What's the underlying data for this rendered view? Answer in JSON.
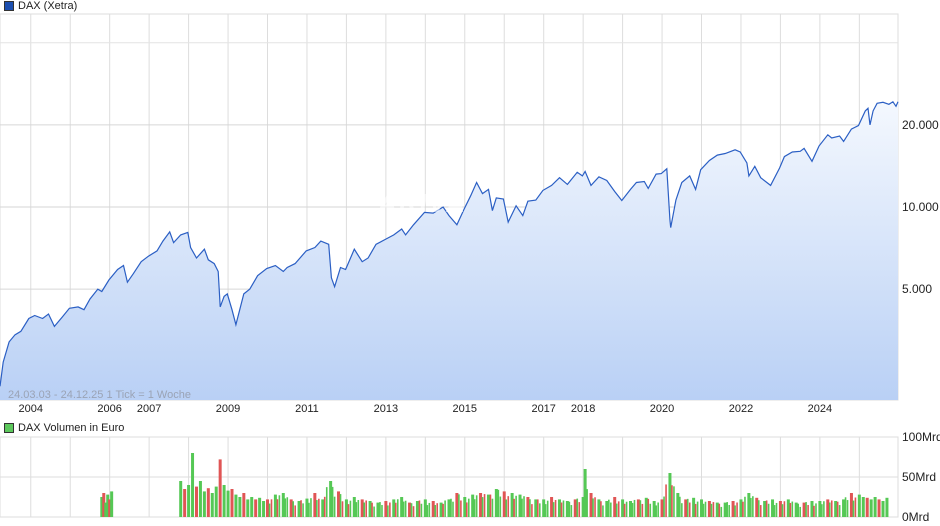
{
  "chart_data": [
    {
      "type": "area",
      "legend": "DAX (Xetra)",
      "legend_color": "#1c4fb0",
      "line_color": "#2b5fc4",
      "info_text": "24.03.03 - 24.12.25   1 Tick = 1 Woche",
      "watermark": "ARIVA",
      "yscale": "log",
      "ylim": [
        1960,
        51000
      ],
      "xlim": [
        2003.22,
        2025.98
      ],
      "yticks": [
        {
          "v": 20000,
          "label": "20.000"
        },
        {
          "v": 10000,
          "label": "10.000"
        },
        {
          "v": 5000,
          "label": "5.000"
        }
      ],
      "xticks": [
        "2004",
        "2006",
        "2007",
        "2009",
        "2011",
        "2013",
        "2015",
        "2017",
        "2018",
        "2020",
        "2022",
        "2024"
      ],
      "grid": true,
      "points": [
        [
          2003.22,
          2200
        ],
        [
          2003.3,
          2700
        ],
        [
          2003.45,
          3200
        ],
        [
          2003.6,
          3400
        ],
        [
          2003.75,
          3500
        ],
        [
          2003.95,
          3900
        ],
        [
          2004.1,
          4000
        ],
        [
          2004.3,
          3900
        ],
        [
          2004.45,
          4050
        ],
        [
          2004.6,
          3650
        ],
        [
          2004.8,
          3950
        ],
        [
          2004.98,
          4250
        ],
        [
          2005.2,
          4300
        ],
        [
          2005.35,
          4200
        ],
        [
          2005.5,
          4600
        ],
        [
          2005.7,
          5000
        ],
        [
          2005.8,
          4900
        ],
        [
          2005.98,
          5400
        ],
        [
          2006.2,
          5900
        ],
        [
          2006.35,
          6100
        ],
        [
          2006.45,
          5300
        ],
        [
          2006.6,
          5700
        ],
        [
          2006.8,
          6300
        ],
        [
          2006.98,
          6600
        ],
        [
          2007.2,
          6900
        ],
        [
          2007.35,
          7500
        ],
        [
          2007.52,
          8100
        ],
        [
          2007.62,
          7400
        ],
        [
          2007.8,
          7900
        ],
        [
          2007.98,
          8070
        ],
        [
          2008.05,
          7100
        ],
        [
          2008.2,
          6500
        ],
        [
          2008.4,
          7000
        ],
        [
          2008.5,
          6400
        ],
        [
          2008.65,
          6200
        ],
        [
          2008.75,
          5800
        ],
        [
          2008.8,
          4300
        ],
        [
          2008.9,
          4700
        ],
        [
          2008.98,
          4800
        ],
        [
          2009.1,
          4200
        ],
        [
          2009.2,
          3700
        ],
        [
          2009.4,
          4800
        ],
        [
          2009.55,
          5000
        ],
        [
          2009.75,
          5600
        ],
        [
          2009.98,
          5950
        ],
        [
          2010.2,
          6100
        ],
        [
          2010.4,
          5800
        ],
        [
          2010.5,
          6000
        ],
        [
          2010.7,
          6200
        ],
        [
          2010.98,
          6900
        ],
        [
          2011.2,
          7100
        ],
        [
          2011.35,
          7500
        ],
        [
          2011.55,
          7300
        ],
        [
          2011.62,
          5500
        ],
        [
          2011.7,
          5100
        ],
        [
          2011.85,
          6000
        ],
        [
          2011.98,
          5900
        ],
        [
          2012.2,
          7000
        ],
        [
          2012.4,
          6300
        ],
        [
          2012.55,
          6500
        ],
        [
          2012.75,
          7300
        ],
        [
          2012.98,
          7600
        ],
        [
          2013.2,
          7900
        ],
        [
          2013.4,
          8300
        ],
        [
          2013.5,
          7900
        ],
        [
          2013.7,
          8600
        ],
        [
          2013.98,
          9550
        ],
        [
          2014.2,
          9500
        ],
        [
          2014.45,
          10000
        ],
        [
          2014.6,
          9300
        ],
        [
          2014.8,
          8600
        ],
        [
          2014.98,
          9800
        ],
        [
          2015.15,
          11000
        ],
        [
          2015.3,
          12300
        ],
        [
          2015.45,
          11200
        ],
        [
          2015.6,
          11600
        ],
        [
          2015.7,
          9700
        ],
        [
          2015.8,
          10800
        ],
        [
          2015.98,
          10700
        ],
        [
          2016.1,
          8800
        ],
        [
          2016.3,
          10100
        ],
        [
          2016.47,
          9300
        ],
        [
          2016.6,
          10500
        ],
        [
          2016.8,
          10600
        ],
        [
          2016.98,
          11500
        ],
        [
          2017.2,
          12000
        ],
        [
          2017.4,
          12800
        ],
        [
          2017.6,
          12100
        ],
        [
          2017.85,
          13400
        ],
        [
          2017.98,
          13000
        ],
        [
          2018.05,
          13500
        ],
        [
          2018.2,
          12000
        ],
        [
          2018.4,
          12900
        ],
        [
          2018.6,
          12500
        ],
        [
          2018.8,
          11400
        ],
        [
          2018.98,
          10560
        ],
        [
          2019.2,
          11600
        ],
        [
          2019.35,
          12300
        ],
        [
          2019.55,
          12400
        ],
        [
          2019.65,
          11700
        ],
        [
          2019.85,
          13200
        ],
        [
          2019.98,
          13250
        ],
        [
          2020.12,
          13800
        ],
        [
          2020.2,
          9000
        ],
        [
          2020.22,
          8400
        ],
        [
          2020.35,
          10600
        ],
        [
          2020.5,
          12300
        ],
        [
          2020.7,
          13000
        ],
        [
          2020.85,
          11600
        ],
        [
          2020.98,
          13700
        ],
        [
          2021.2,
          14800
        ],
        [
          2021.4,
          15500
        ],
        [
          2021.6,
          15700
        ],
        [
          2021.85,
          16200
        ],
        [
          2021.98,
          15900
        ],
        [
          2022.15,
          14500
        ],
        [
          2022.2,
          13000
        ],
        [
          2022.35,
          14100
        ],
        [
          2022.5,
          12800
        ],
        [
          2022.75,
          12000
        ],
        [
          2022.98,
          13900
        ],
        [
          2023.1,
          15300
        ],
        [
          2023.3,
          15900
        ],
        [
          2023.5,
          16000
        ],
        [
          2023.6,
          16400
        ],
        [
          2023.8,
          14700
        ],
        [
          2023.98,
          16750
        ],
        [
          2024.2,
          18400
        ],
        [
          2024.3,
          17900
        ],
        [
          2024.5,
          18200
        ],
        [
          2024.6,
          17400
        ],
        [
          2024.8,
          19300
        ],
        [
          2024.98,
          19900
        ],
        [
          2025.15,
          22500
        ],
        [
          2025.22,
          23000
        ],
        [
          2025.27,
          20000
        ],
        [
          2025.35,
          22500
        ],
        [
          2025.45,
          24000
        ],
        [
          2025.6,
          24200
        ],
        [
          2025.75,
          23800
        ],
        [
          2025.85,
          24300
        ],
        [
          2025.93,
          23400
        ],
        [
          2025.98,
          24300
        ]
      ]
    },
    {
      "type": "bar",
      "legend": "DAX Volumen in Euro",
      "legend_color": "#5cc85c",
      "up_color": "#55c855",
      "down_color": "#e05555",
      "unit": "Mrd",
      "ylim": [
        0,
        100
      ],
      "yticks": [
        {
          "v": 100,
          "label": "100Mrd"
        },
        {
          "v": 50,
          "label": "50Mrd"
        },
        {
          "v": 0,
          "label": "0Mrd"
        }
      ],
      "points": [
        [
          2005.8,
          25
        ],
        [
          2005.85,
          30
        ],
        [
          2005.9,
          18
        ],
        [
          2005.95,
          28
        ],
        [
          2006.0,
          22
        ],
        [
          2006.05,
          32
        ],
        [
          2007.8,
          45
        ],
        [
          2007.9,
          35
        ],
        [
          2008.0,
          40
        ],
        [
          2008.1,
          80
        ],
        [
          2008.2,
          38
        ],
        [
          2008.3,
          45
        ],
        [
          2008.4,
          32
        ],
        [
          2008.5,
          36
        ],
        [
          2008.6,
          30
        ],
        [
          2008.7,
          38
        ],
        [
          2008.8,
          72
        ],
        [
          2008.9,
          40
        ],
        [
          2009.0,
          33
        ],
        [
          2009.1,
          35
        ],
        [
          2009.2,
          28
        ],
        [
          2009.3,
          25
        ],
        [
          2009.4,
          30
        ],
        [
          2009.5,
          22
        ],
        [
          2009.6,
          25
        ],
        [
          2009.7,
          22
        ],
        [
          2009.8,
          24
        ],
        [
          2009.9,
          20
        ],
        [
          2010.0,
          22
        ],
        [
          2010.2,
          28
        ],
        [
          2010.4,
          30
        ],
        [
          2010.6,
          22
        ],
        [
          2010.8,
          20
        ],
        [
          2011.0,
          23
        ],
        [
          2011.2,
          30
        ],
        [
          2011.4,
          22
        ],
        [
          2011.6,
          45
        ],
        [
          2011.8,
          32
        ],
        [
          2012.0,
          22
        ],
        [
          2012.2,
          25
        ],
        [
          2012.4,
          22
        ],
        [
          2012.6,
          20
        ],
        [
          2012.8,
          18
        ],
        [
          2013.0,
          20
        ],
        [
          2013.2,
          22
        ],
        [
          2013.4,
          25
        ],
        [
          2013.6,
          18
        ],
        [
          2013.8,
          20
        ],
        [
          2014.0,
          22
        ],
        [
          2014.2,
          20
        ],
        [
          2014.4,
          18
        ],
        [
          2014.6,
          22
        ],
        [
          2014.8,
          30
        ],
        [
          2015.0,
          25
        ],
        [
          2015.2,
          28
        ],
        [
          2015.4,
          30
        ],
        [
          2015.6,
          28
        ],
        [
          2015.8,
          35
        ],
        [
          2016.0,
          32
        ],
        [
          2016.2,
          30
        ],
        [
          2016.4,
          28
        ],
        [
          2016.6,
          25
        ],
        [
          2016.8,
          22
        ],
        [
          2017.0,
          22
        ],
        [
          2017.2,
          25
        ],
        [
          2017.4,
          22
        ],
        [
          2017.6,
          20
        ],
        [
          2017.8,
          22
        ],
        [
          2018.0,
          25
        ],
        [
          2018.05,
          60
        ],
        [
          2018.2,
          30
        ],
        [
          2018.4,
          22
        ],
        [
          2018.6,
          20
        ],
        [
          2018.8,
          25
        ],
        [
          2019.0,
          22
        ],
        [
          2019.2,
          20
        ],
        [
          2019.4,
          22
        ],
        [
          2019.6,
          24
        ],
        [
          2019.8,
          20
        ],
        [
          2020.0,
          22
        ],
        [
          2020.2,
          55
        ],
        [
          2020.4,
          30
        ],
        [
          2020.6,
          22
        ],
        [
          2020.8,
          24
        ],
        [
          2021.0,
          22
        ],
        [
          2021.2,
          20
        ],
        [
          2021.4,
          18
        ],
        [
          2021.6,
          18
        ],
        [
          2021.8,
          20
        ],
        [
          2022.0,
          22
        ],
        [
          2022.2,
          30
        ],
        [
          2022.4,
          24
        ],
        [
          2022.6,
          20
        ],
        [
          2022.8,
          22
        ],
        [
          2023.0,
          20
        ],
        [
          2023.2,
          22
        ],
        [
          2023.4,
          18
        ],
        [
          2023.6,
          18
        ],
        [
          2023.8,
          20
        ],
        [
          2024.0,
          20
        ],
        [
          2024.2,
          22
        ],
        [
          2024.4,
          20
        ],
        [
          2024.6,
          22
        ],
        [
          2024.8,
          30
        ],
        [
          2025.0,
          28
        ],
        [
          2025.1,
          25
        ],
        [
          2025.2,
          24
        ],
        [
          2025.3,
          22
        ],
        [
          2025.4,
          25
        ],
        [
          2025.5,
          22
        ],
        [
          2025.6,
          20
        ],
        [
          2025.7,
          24
        ]
      ]
    }
  ]
}
